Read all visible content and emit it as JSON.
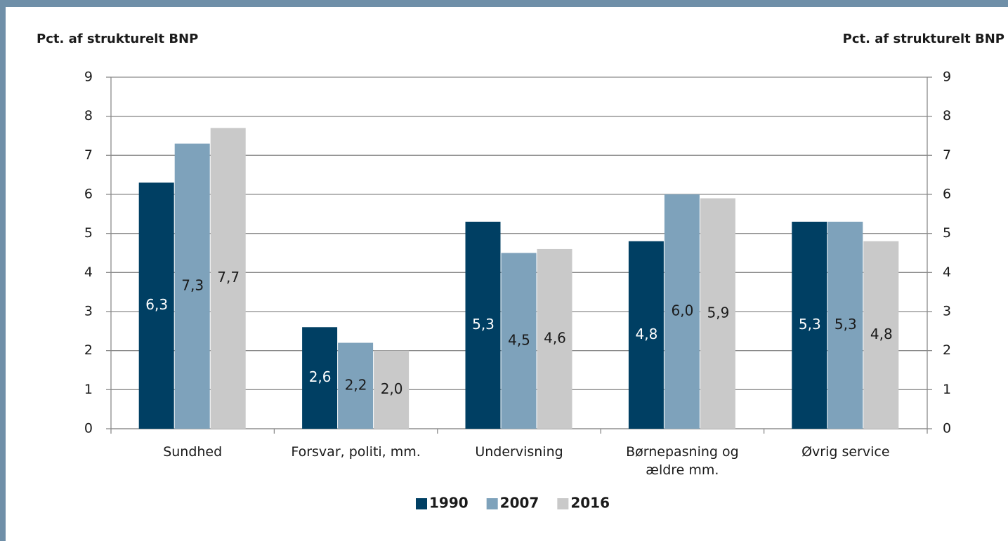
{
  "chart_data": {
    "type": "bar",
    "y_label": "Pct. af strukturelt BNP",
    "y2_label": "Pct. af strukturelt BNP",
    "categories": [
      "Sundhed",
      "Forsvar, politi, mm.",
      "Undervisning",
      "Børnepasning og ældre mm.",
      "Øvrig service"
    ],
    "series": [
      {
        "name": "1990",
        "color": "#003f63",
        "values": [
          6.3,
          2.6,
          5.3,
          4.8,
          5.3
        ],
        "value_labels": [
          "6,3",
          "2,6",
          "5,3",
          "4,8",
          "5,3"
        ]
      },
      {
        "name": "2007",
        "color": "#7ea2bb",
        "values": [
          7.3,
          2.2,
          4.5,
          6.0,
          5.3
        ],
        "value_labels": [
          "7,3",
          "2,2",
          "4,5",
          "6,0",
          "5,3"
        ]
      },
      {
        "name": "2016",
        "color": "#c9c9c9",
        "values": [
          7.7,
          2.0,
          4.6,
          5.9,
          4.8
        ],
        "value_labels": [
          "7,7",
          "2,0",
          "4,6",
          "5,9",
          "4,8"
        ]
      }
    ],
    "ylim": [
      0,
      9
    ],
    "yticks": [
      0,
      1,
      2,
      3,
      4,
      5,
      6,
      7,
      8,
      9
    ],
    "y2lim": [
      0,
      9
    ],
    "y2ticks": [
      0,
      1,
      2,
      3,
      4,
      5,
      6,
      7,
      8,
      9
    ],
    "grid": true
  }
}
